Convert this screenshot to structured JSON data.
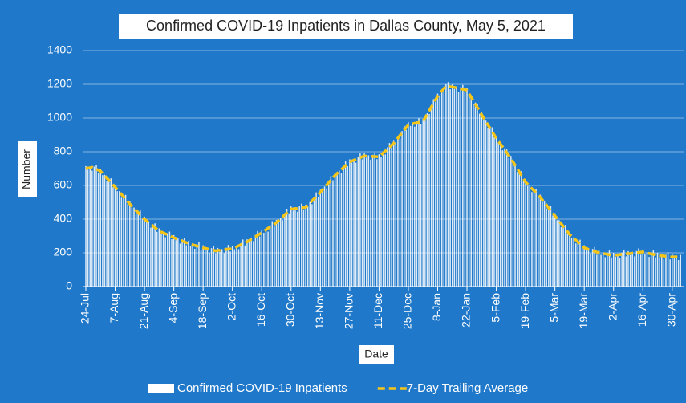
{
  "chart_data": {
    "type": "bar",
    "title": "Confirmed COVID-19 Inpatients in Dallas County, May 5, 2021",
    "x_label": "Date",
    "y_label": "Number",
    "ylim": [
      0,
      1400
    ],
    "yticks": [
      0,
      200,
      400,
      600,
      800,
      1000,
      1200,
      1400
    ],
    "grid": true,
    "legend": "bottom",
    "categories": [
      "24-Jul",
      null,
      null,
      null,
      null,
      null,
      null,
      null,
      null,
      null,
      null,
      null,
      null,
      null,
      "7-Aug",
      null,
      null,
      null,
      null,
      null,
      null,
      null,
      null,
      null,
      null,
      null,
      null,
      null,
      "21-Aug",
      null,
      null,
      null,
      null,
      null,
      null,
      null,
      null,
      null,
      null,
      null,
      null,
      null,
      "4-Sep",
      null,
      null,
      null,
      null,
      null,
      null,
      null,
      null,
      null,
      null,
      null,
      null,
      null,
      "18-Sep",
      null,
      null,
      null,
      null,
      null,
      null,
      null,
      null,
      null,
      null,
      null,
      null,
      null,
      "2-Oct",
      null,
      null,
      null,
      null,
      null,
      null,
      null,
      null,
      null,
      null,
      null,
      null,
      null,
      "16-Oct",
      null,
      null,
      null,
      null,
      null,
      null,
      null,
      null,
      null,
      null,
      null,
      null,
      null,
      "30-Oct",
      null,
      null,
      null,
      null,
      null,
      null,
      null,
      null,
      null,
      null,
      null,
      null,
      null,
      "13-Nov",
      null,
      null,
      null,
      null,
      null,
      null,
      null,
      null,
      null,
      null,
      null,
      null,
      null,
      "27-Nov",
      null,
      null,
      null,
      null,
      null,
      null,
      null,
      null,
      null,
      null,
      null,
      null,
      null,
      "11-Dec",
      null,
      null,
      null,
      null,
      null,
      null,
      null,
      null,
      null,
      null,
      null,
      null,
      null,
      "25-Dec",
      null,
      null,
      null,
      null,
      null,
      null,
      null,
      null,
      null,
      null,
      null,
      null,
      null,
      "8-Jan",
      null,
      null,
      null,
      null,
      null,
      null,
      null,
      null,
      null,
      null,
      null,
      null,
      null,
      "22-Jan",
      null,
      null,
      null,
      null,
      null,
      null,
      null,
      null,
      null,
      null,
      null,
      null,
      null,
      "5-Feb",
      null,
      null,
      null,
      null,
      null,
      null,
      null,
      null,
      null,
      null,
      null,
      null,
      null,
      "19-Feb",
      null,
      null,
      null,
      null,
      null,
      null,
      null,
      null,
      null,
      null,
      null,
      null,
      null,
      "5-Mar",
      null,
      null,
      null,
      null,
      null,
      null,
      null,
      null,
      null,
      null,
      null,
      null,
      null,
      "19-Mar",
      null,
      null,
      null,
      null,
      null,
      null,
      null,
      null,
      null,
      null,
      null,
      null,
      null,
      "2-Apr",
      null,
      null,
      null,
      null,
      null,
      null,
      null,
      null,
      null,
      null,
      null,
      null,
      null,
      "16-Apr",
      null,
      null,
      null,
      null,
      null,
      null,
      null,
      null,
      null,
      null,
      null,
      null,
      null,
      "30-Apr",
      null,
      null,
      null,
      null
    ],
    "series": [
      {
        "name": "Confirmed COVID-19 Inpatients",
        "type": "bar",
        "color": "#ffffff",
        "values": [
          715,
          693,
          710,
          688,
          712,
          721,
          676,
          700,
          661,
          663,
          624,
          641,
          642,
          589,
          605,
          566,
          566,
          527,
          543,
          544,
          489,
          505,
          467,
          469,
          431,
          449,
          451,
          398,
          415,
          380,
          385,
          350,
          370,
          375,
          325,
          345,
          314,
          324,
          293,
          317,
          326,
          281,
          305,
          275,
          285,
          255,
          280,
          290,
          245,
          270,
          241,
          253,
          224,
          251,
          262,
          219,
          245,
          217,
          229,
          201,
          228,
          240,
          197,
          229,
          205,
          222,
          198,
          230,
          247,
          208,
          240,
          221,
          241,
          222,
          258,
          279,
          244,
          280,
          263,
          286,
          269,
          306,
          329,
          297,
          335,
          319,
          342,
          326,
          364,
          388,
          356,
          395,
          381,
          408,
          394,
          436,
          462,
          434,
          475,
          451,
          468,
          444,
          476,
          492,
          454,
          485,
          473,
          501,
          489,
          531,
          559,
          532,
          575,
          564,
          594,
          583,
          627,
          656,
          631,
          675,
          661,
          688,
          674,
          716,
          742,
          714,
          755,
          735,
          755,
          735,
          770,
          790,
          755,
          790,
          764,
          779,
          753,
          782,
          796,
          756,
          785,
          771,
          798,
          784,
          826,
          852,
          824,
          865,
          856,
          886,
          877,
          923,
          954,
          929,
          975,
          953,
          971,
          949,
          981,
          999,
          962,
          995,
          991,
          1028,
          1024,
          1076,
          1112,
          1094,
          1145,
          1135,
          1165,
          1155,
          1200,
          1213,
          1171,
          1199,
          1172,
          1185,
          1157,
          1184,
          1196,
          1153,
          1180,
          1134,
          1129,
          1083,
          1092,
          1086,
          1026,
          1035,
          990,
          985,
          940,
          950,
          945,
          885,
          895,
          853,
          851,
          809,
          821,
          819,
          762,
          775,
          730,
          725,
          680,
          690,
          685,
          625,
          635,
          597,
          599,
          561,
          579,
          581,
          528,
          545,
          504,
          504,
          463,
          477,
          476,
          421,
          435,
          394,
          394,
          353,
          367,
          366,
          311,
          325,
          289,
          292,
          256,
          274,
          278,
          226,
          245,
          216,
          226,
          197,
          223,
          234,
          189,
          215,
          188,
          201,
          174,
          201,
          214,
          172,
          200,
          176,
          193,
          169,
          201,
          217,
          179,
          210,
          186,
          203,
          179,
          211,
          227,
          189,
          220,
          192,
          204,
          176,
          204,
          216,
          173,
          200,
          174,
          187,
          161,
          189,
          203,
          161,
          190,
          166,
          181,
          157,
          188
        ]
      },
      {
        "name": "7-Day Trailing Average",
        "type": "line",
        "color": "#f5c518",
        "dashed": true,
        "values": [
          700,
          703,
          705,
          708,
          702,
          696,
          691,
          685,
          671,
          658,
          644,
          631,
          617,
          604,
          590,
          576,
          561,
          547,
          533,
          519,
          504,
          490,
          477,
          464,
          451,
          439,
          426,
          413,
          400,
          390,
          380,
          370,
          360,
          350,
          340,
          330,
          324,
          319,
          313,
          307,
          301,
          296,
          290,
          285,
          280,
          275,
          270,
          265,
          260,
          255,
          251,
          248,
          244,
          241,
          237,
          234,
          230,
          227,
          224,
          221,
          218,
          215,
          212,
          214,
          215,
          217,
          218,
          220,
          222,
          223,
          225,
          231,
          236,
          242,
          248,
          254,
          259,
          265,
          273,
          281,
          289,
          296,
          304,
          312,
          320,
          329,
          337,
          346,
          354,
          363,
          371,
          380,
          391,
          403,
          414,
          426,
          437,
          449,
          460,
          461,
          463,
          464,
          466,
          467,
          469,
          470,
          483,
          496,
          509,
          521,
          534,
          547,
          560,
          574,
          589,
          603,
          617,
          631,
          646,
          660,
          671,
          683,
          694,
          706,
          717,
          729,
          740,
          745,
          750,
          755,
          760,
          765,
          770,
          775,
          774,
          774,
          773,
          772,
          771,
          771,
          770,
          781,
          793,
          804,
          816,
          827,
          839,
          850,
          866,
          881,
          897,
          913,
          929,
          944,
          960,
          963,
          966,
          969,
          971,
          974,
          977,
          980,
          1001,
          1023,
          1044,
          1066,
          1087,
          1109,
          1130,
          1145,
          1160,
          1175,
          1190,
          1188,
          1186,
          1184,
          1182,
          1180,
          1177,
          1174,
          1171,
          1168,
          1165,
          1144,
          1124,
          1103,
          1082,
          1061,
          1041,
          1020,
          1000,
          980,
          960,
          940,
          920,
          900,
          880,
          863,
          846,
          829,
          811,
          794,
          777,
          760,
          740,
          720,
          700,
          680,
          660,
          640,
          620,
          607,
          594,
          581,
          569,
          556,
          543,
          530,
          514,
          499,
          483,
          467,
          451,
          436,
          420,
          404,
          389,
          373,
          357,
          341,
          326,
          310,
          299,
          287,
          276,
          264,
          253,
          241,
          230,
          226,
          221,
          217,
          213,
          209,
          204,
          200,
          198,
          196,
          194,
          191,
          189,
          187,
          185,
          186,
          188,
          189,
          191,
          192,
          194,
          195,
          196,
          198,
          199,
          201,
          202,
          204,
          205,
          202,
          199,
          196,
          194,
          191,
          188,
          185,
          184,
          182,
          181,
          179,
          178,
          176,
          175,
          176,
          176,
          177,
          178
        ]
      }
    ]
  }
}
